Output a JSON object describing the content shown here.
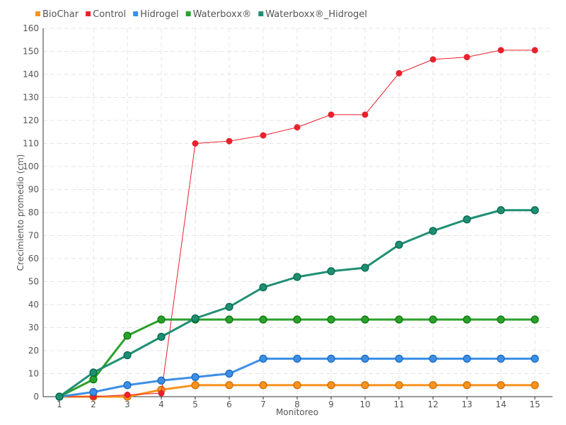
{
  "chart_data": {
    "type": "line",
    "title": "",
    "xlabel": "Monitoreo",
    "ylabel": "Crecimiento promedio (cm)",
    "ylim": [
      0,
      160
    ],
    "ytick_step": 10,
    "grid": true,
    "legend_position": "top-left",
    "categories": [
      "1",
      "2",
      "3",
      "4",
      "5",
      "6",
      "7",
      "8",
      "9",
      "10",
      "11",
      "12",
      "13",
      "14",
      "15"
    ],
    "series": [
      {
        "name": "BioChar",
        "color": "#f7931e",
        "values": [
          0,
          0,
          0,
          3,
          5,
          5,
          5,
          5,
          5,
          5,
          5,
          5,
          5,
          5,
          5
        ]
      },
      {
        "name": "Control",
        "color": "#e8212c",
        "values": [
          0,
          0,
          0.8,
          1.5,
          110,
          111,
          113.5,
          117,
          122.5,
          122.5,
          140.5,
          146.5,
          147.5,
          150.5,
          150.5
        ]
      },
      {
        "name": "Hidrogel",
        "color": "#3d8fe6",
        "values": [
          0,
          2,
          5,
          7,
          8.5,
          10,
          16.5,
          16.5,
          16.5,
          16.5,
          16.5,
          16.5,
          16.5,
          16.5,
          16.5
        ]
      },
      {
        "name": "Waterboxx®",
        "color": "#2ca02c",
        "values": [
          0,
          7.5,
          26.5,
          33.5,
          33.5,
          33.5,
          33.5,
          33.5,
          33.5,
          33.5,
          33.5,
          33.5,
          33.5,
          33.5,
          33.5
        ]
      },
      {
        "name": "Waterboxx®_Hidrogel",
        "color": "#1f8f73",
        "values": [
          0,
          10.5,
          18,
          26,
          34,
          39,
          47.5,
          52,
          54.5,
          56,
          66,
          72,
          77,
          81,
          81
        ]
      }
    ]
  }
}
